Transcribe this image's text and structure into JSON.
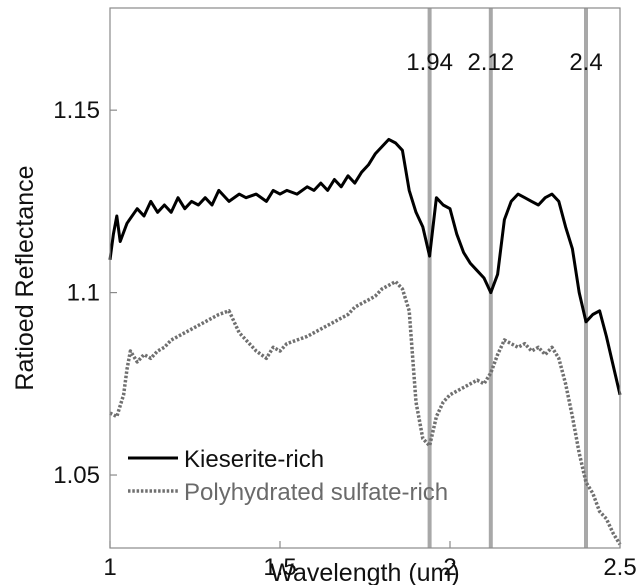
{
  "chart_data": {
    "type": "line",
    "xlabel": "Wavelength (um)",
    "ylabel": "Ratioed Reflectance",
    "xlim": [
      1.0,
      2.5
    ],
    "ylim": [
      1.03,
      1.178
    ],
    "xticks": [
      {
        "value": 1.0,
        "label": "1"
      },
      {
        "value": 1.5,
        "label": "1.5"
      },
      {
        "value": 2.0,
        "label": "2"
      },
      {
        "value": 2.5,
        "label": "2.5"
      }
    ],
    "yticks": [
      {
        "value": 1.05,
        "label": "1.05"
      },
      {
        "value": 1.1,
        "label": "1.1"
      },
      {
        "value": 1.15,
        "label": "1.15"
      }
    ],
    "grid": false,
    "legend_position": "bottom-left",
    "reference_lines": [
      {
        "x": 1.94,
        "label": "1.94"
      },
      {
        "x": 2.12,
        "label": "2.12"
      },
      {
        "x": 2.4,
        "label": "2.4"
      }
    ],
    "reference_line_color": "#a8a8a8",
    "series": [
      {
        "name": "Kieserite-rich",
        "color": "#000000",
        "style": "solid",
        "x": [
          1.0,
          1.01,
          1.02,
          1.03,
          1.05,
          1.08,
          1.1,
          1.12,
          1.14,
          1.16,
          1.18,
          1.2,
          1.22,
          1.24,
          1.26,
          1.28,
          1.3,
          1.32,
          1.35,
          1.38,
          1.4,
          1.43,
          1.46,
          1.48,
          1.5,
          1.52,
          1.55,
          1.58,
          1.6,
          1.62,
          1.64,
          1.66,
          1.68,
          1.7,
          1.72,
          1.74,
          1.76,
          1.78,
          1.8,
          1.82,
          1.84,
          1.86,
          1.88,
          1.9,
          1.92,
          1.94,
          1.96,
          1.98,
          2.0,
          2.02,
          2.04,
          2.06,
          2.08,
          2.1,
          2.12,
          2.14,
          2.16,
          2.18,
          2.2,
          2.22,
          2.24,
          2.26,
          2.28,
          2.3,
          2.32,
          2.34,
          2.36,
          2.38,
          2.4,
          2.42,
          2.44,
          2.46,
          2.48,
          2.5
        ],
        "values": [
          1.109,
          1.116,
          1.121,
          1.114,
          1.119,
          1.123,
          1.121,
          1.125,
          1.122,
          1.124,
          1.122,
          1.126,
          1.123,
          1.125,
          1.124,
          1.126,
          1.124,
          1.128,
          1.125,
          1.127,
          1.126,
          1.127,
          1.125,
          1.128,
          1.127,
          1.128,
          1.127,
          1.129,
          1.128,
          1.13,
          1.128,
          1.131,
          1.129,
          1.132,
          1.13,
          1.133,
          1.135,
          1.138,
          1.14,
          1.142,
          1.141,
          1.139,
          1.128,
          1.122,
          1.118,
          1.11,
          1.126,
          1.124,
          1.123,
          1.116,
          1.111,
          1.108,
          1.106,
          1.104,
          1.1,
          1.105,
          1.12,
          1.125,
          1.127,
          1.126,
          1.125,
          1.124,
          1.126,
          1.127,
          1.125,
          1.118,
          1.112,
          1.1,
          1.092,
          1.094,
          1.095,
          1.088,
          1.08,
          1.072
        ]
      },
      {
        "name": "Polyhydrated sulfate-rich",
        "color": "#707070",
        "style": "dotted",
        "x": [
          1.0,
          1.02,
          1.04,
          1.05,
          1.06,
          1.08,
          1.1,
          1.12,
          1.14,
          1.16,
          1.18,
          1.2,
          1.22,
          1.24,
          1.26,
          1.28,
          1.3,
          1.32,
          1.35,
          1.38,
          1.4,
          1.43,
          1.46,
          1.48,
          1.5,
          1.52,
          1.55,
          1.58,
          1.6,
          1.62,
          1.64,
          1.66,
          1.68,
          1.7,
          1.72,
          1.74,
          1.76,
          1.78,
          1.8,
          1.82,
          1.84,
          1.86,
          1.88,
          1.9,
          1.92,
          1.94,
          1.96,
          1.98,
          2.0,
          2.02,
          2.04,
          2.06,
          2.08,
          2.1,
          2.12,
          2.14,
          2.16,
          2.18,
          2.2,
          2.22,
          2.24,
          2.26,
          2.28,
          2.3,
          2.32,
          2.34,
          2.36,
          2.38,
          2.4,
          2.42,
          2.44,
          2.46,
          2.48,
          2.5
        ],
        "values": [
          1.067,
          1.066,
          1.072,
          1.079,
          1.084,
          1.081,
          1.083,
          1.082,
          1.084,
          1.085,
          1.087,
          1.088,
          1.089,
          1.09,
          1.091,
          1.092,
          1.093,
          1.094,
          1.095,
          1.089,
          1.087,
          1.084,
          1.082,
          1.085,
          1.084,
          1.086,
          1.087,
          1.088,
          1.089,
          1.09,
          1.091,
          1.092,
          1.093,
          1.094,
          1.096,
          1.097,
          1.098,
          1.099,
          1.101,
          1.102,
          1.103,
          1.101,
          1.095,
          1.07,
          1.06,
          1.058,
          1.066,
          1.07,
          1.072,
          1.073,
          1.074,
          1.075,
          1.076,
          1.075,
          1.078,
          1.083,
          1.087,
          1.086,
          1.085,
          1.086,
          1.084,
          1.085,
          1.083,
          1.085,
          1.082,
          1.075,
          1.066,
          1.056,
          1.048,
          1.045,
          1.04,
          1.038,
          1.034,
          1.031
        ]
      }
    ]
  }
}
